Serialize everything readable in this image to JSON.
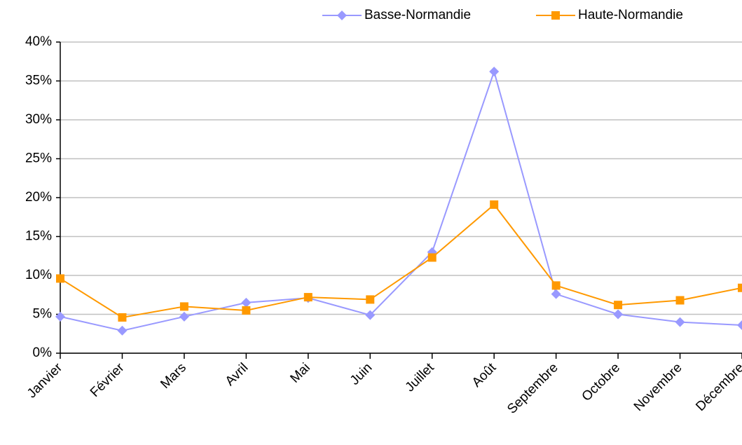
{
  "chart_data": {
    "type": "line",
    "categories": [
      "Janvier",
      "Février",
      "Mars",
      "Avril",
      "Mai",
      "Juin",
      "Juillet",
      "Août",
      "Septembre",
      "Octobre",
      "Novembre",
      "Décembre"
    ],
    "series": [
      {
        "name": "Basse-Normandie",
        "color": "#9999ff",
        "marker": "diamond",
        "values": [
          4.7,
          2.9,
          4.7,
          6.5,
          7.1,
          4.9,
          13.0,
          36.2,
          7.6,
          5.0,
          4.0,
          3.6
        ]
      },
      {
        "name": "Haute-Normandie",
        "color": "#ff9900",
        "marker": "square",
        "values": [
          9.6,
          4.6,
          6.0,
          5.5,
          7.2,
          6.9,
          12.3,
          19.1,
          8.7,
          6.2,
          6.8,
          8.4
        ]
      }
    ],
    "ylim": [
      0,
      40
    ],
    "yticks": [
      {
        "value": 0,
        "label": "0%"
      },
      {
        "value": 5,
        "label": "5%"
      },
      {
        "value": 10,
        "label": "10%"
      },
      {
        "value": 15,
        "label": "15%"
      },
      {
        "value": 20,
        "label": "20%"
      },
      {
        "value": 25,
        "label": "25%"
      },
      {
        "value": 30,
        "label": "30%"
      },
      {
        "value": 35,
        "label": "35%"
      },
      {
        "value": 40,
        "label": "40%"
      }
    ],
    "grid": true,
    "legend": "top-right"
  }
}
